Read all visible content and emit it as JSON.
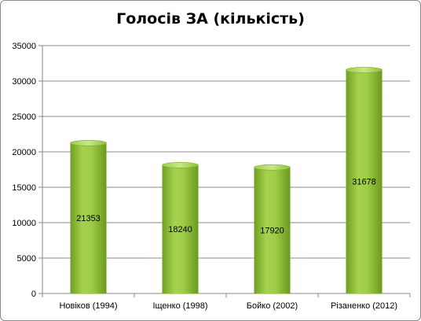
{
  "chart_data": {
    "type": "bar",
    "title": "Голосів ЗА (кількість)",
    "xlabel": "",
    "ylabel": "",
    "categories": [
      "Новіков (1994)",
      "Іщенко (1998)",
      "Бойко (2002)",
      "Різаненко (2012)"
    ],
    "values": [
      21353,
      18240,
      17920,
      31678
    ],
    "ylim": [
      0,
      35000
    ],
    "yticks": [
      0,
      5000,
      10000,
      15000,
      20000,
      25000,
      30000,
      35000
    ],
    "grid": true,
    "legend": "none",
    "bar_color": "#92c43a",
    "data_labels": [
      "21353",
      "18240",
      "17920",
      "31678"
    ]
  }
}
